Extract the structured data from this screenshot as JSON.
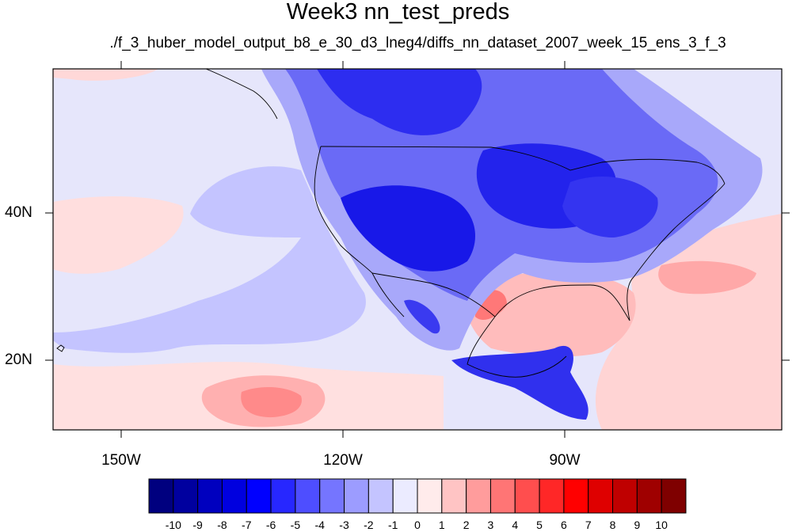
{
  "title": "Week3 nn_test_preds",
  "subtitle": "./f_3_huber_model_output_b8_e_30_d3_lneg4/diffs_nn_dataset_2007_week_15_ens_3_f_3",
  "map": {
    "lat_labels": [
      "40N",
      "20N"
    ],
    "lon_labels": [
      "150W",
      "120W",
      "90W"
    ]
  },
  "colorbar": {
    "labels": [
      "-10",
      "-9",
      "-8",
      "-7",
      "-6",
      "-5",
      "-4",
      "-3",
      "-2",
      "-1",
      "0",
      "1",
      "2",
      "3",
      "4",
      "5",
      "6",
      "7",
      "8",
      "9",
      "10"
    ],
    "colors": [
      "#00007f",
      "#00009f",
      "#0000bf",
      "#0000df",
      "#0000ff",
      "#2727ff",
      "#4e4eff",
      "#7575ff",
      "#9c9cff",
      "#c4c4ff",
      "#ebebff",
      "#ffebeb",
      "#ffc4c4",
      "#ff9c9c",
      "#ff7575",
      "#ff4e4e",
      "#ff2727",
      "#ff0000",
      "#df0000",
      "#bf0000",
      "#9f0000",
      "#7f0000"
    ]
  }
}
